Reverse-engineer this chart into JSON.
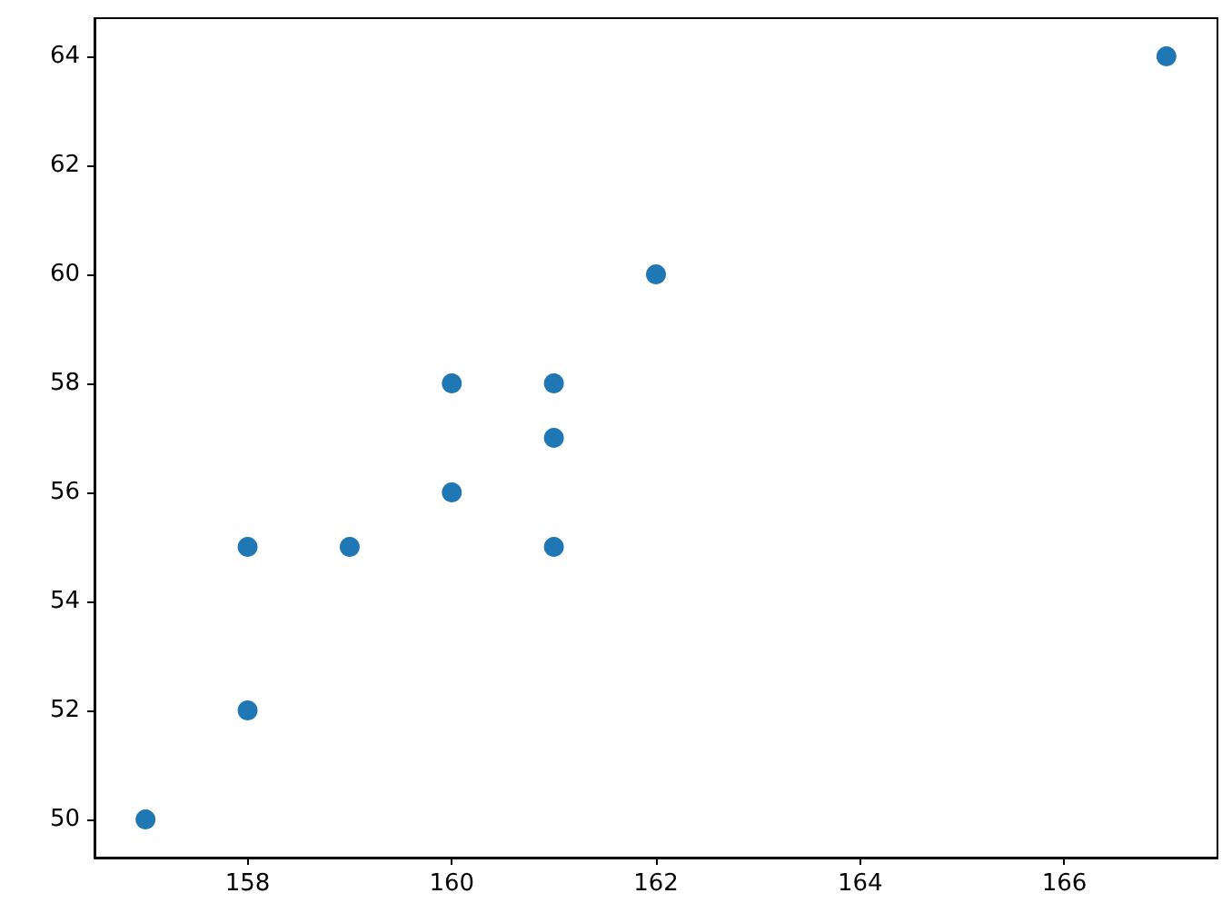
{
  "chart_data": {
    "type": "scatter",
    "x": [
      157,
      158,
      158,
      159,
      160,
      160,
      161,
      161,
      161,
      162,
      167
    ],
    "values": [
      50,
      52,
      55,
      55,
      56,
      58,
      55,
      57,
      58,
      60,
      64
    ],
    "color": "#1f77b4",
    "xlim": [
      156.5,
      167.5
    ],
    "xticks": [
      158,
      160,
      162,
      164,
      166
    ],
    "ylim": [
      49.3,
      64.7
    ],
    "yticks": [
      50,
      52,
      54,
      56,
      58,
      60,
      62,
      64
    ],
    "grid": false,
    "marker": "circle"
  }
}
